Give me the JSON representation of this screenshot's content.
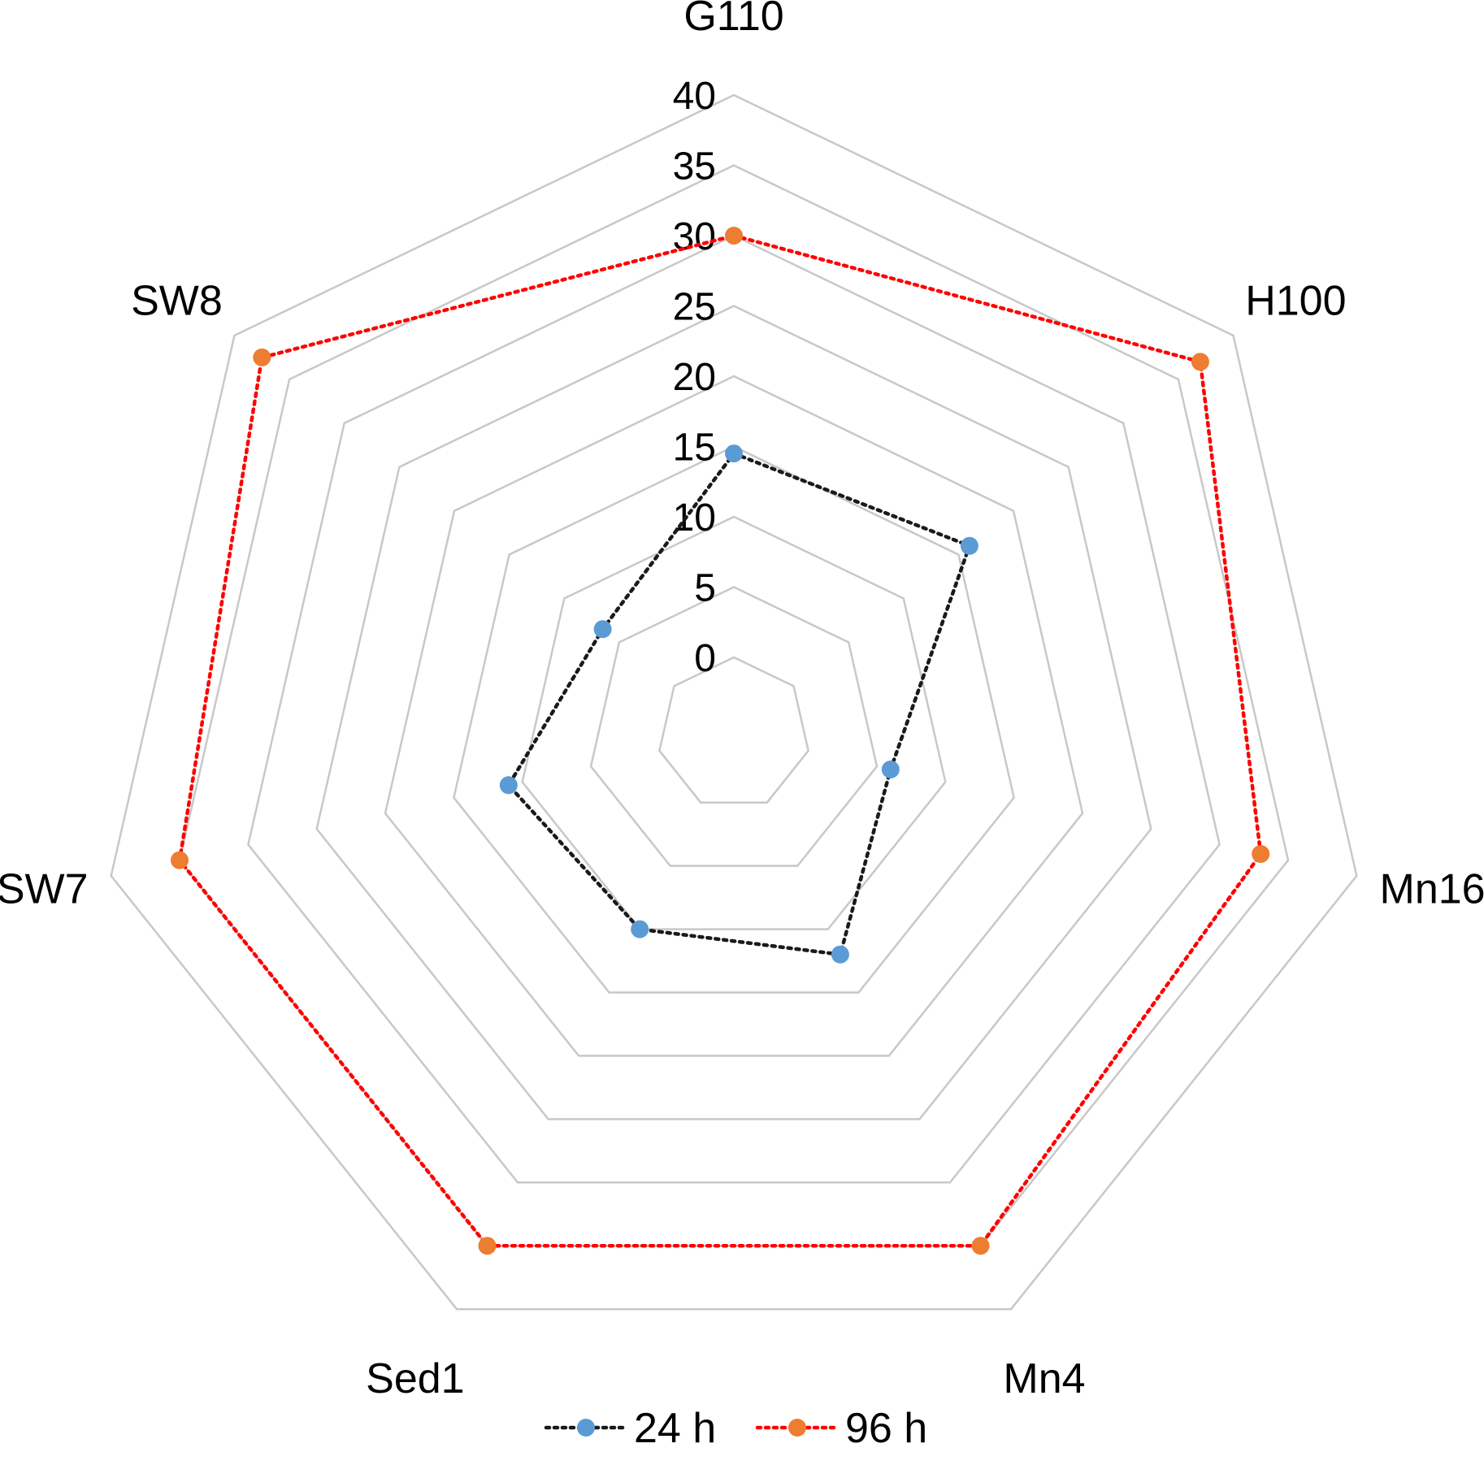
{
  "chart_data": {
    "type": "radar",
    "categories": [
      "G110",
      "H100",
      "Mn16",
      "Mn4",
      "Sed1",
      "SW7",
      "SW8"
    ],
    "r_ticks": [
      0,
      5,
      10,
      15,
      20,
      25,
      30,
      35,
      40
    ],
    "rlim": [
      0,
      40
    ],
    "grid": true,
    "legend_position": "bottom",
    "series": [
      {
        "name": "24 h",
        "values": [
          14.5,
          16,
          6,
          12,
          10,
          11,
          6.5
        ],
        "marker_color": "#5b9bd5",
        "line_color": "#1a1a1a"
      },
      {
        "name": "96 h",
        "values": [
          30,
          37,
          33,
          35,
          35,
          35,
          37.5
        ],
        "marker_color": "#ed7d31",
        "line_color": "#ff0000"
      }
    ],
    "colors": {
      "grid": "#c8c8c8"
    }
  }
}
